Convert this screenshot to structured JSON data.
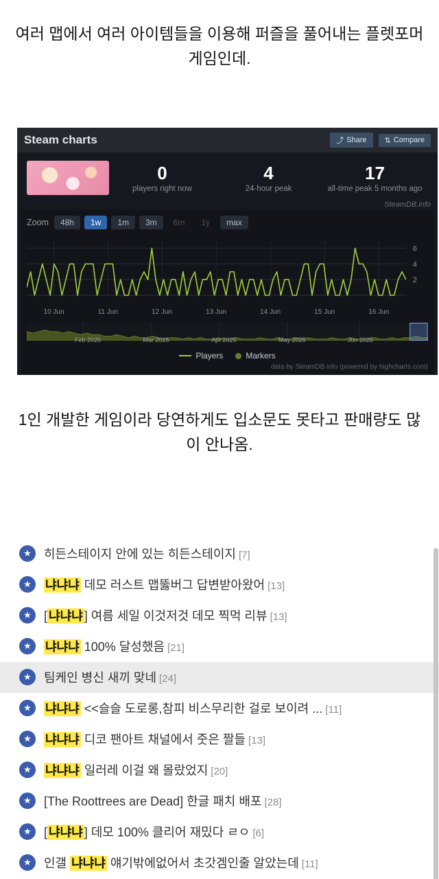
{
  "top_text": "여러 맵에서 여러 아이템들을 이용해 퍼즐을 풀어내는 플렛포머 게임인데.",
  "mid_text": "1인 개발한 게임이라 당연하게도 입소문도 못타고 판매량도 많이 안나옴.",
  "steam": {
    "title": "Steam charts",
    "share_label": "Share",
    "compare_label": "Compare",
    "watermark": "SteamDB.info",
    "zoom_label": "Zoom",
    "zoom_options": [
      {
        "label": "48h",
        "state": "normal"
      },
      {
        "label": "1w",
        "state": "selected"
      },
      {
        "label": "1m",
        "state": "normal"
      },
      {
        "label": "3m",
        "state": "normal"
      },
      {
        "label": "6m",
        "state": "disabled"
      },
      {
        "label": "1y",
        "state": "disabled"
      },
      {
        "label": "max",
        "state": "normal"
      }
    ],
    "stats": [
      {
        "value": "0",
        "label": "players right now"
      },
      {
        "value": "4",
        "label": "24-hour peak"
      },
      {
        "value": "17",
        "label": "all-time peak 5 months ago"
      }
    ],
    "legend": [
      "Players",
      "Markers"
    ],
    "footer": "data by SteamDB.info (powered by highcharts.com)",
    "colors": {
      "line": "#a3ce3c",
      "navigator_fill": "#49531f",
      "selected_zoom": "#2e66ab",
      "highlight": "#ffe94a",
      "star_blue": "#3b5bac"
    }
  },
  "chart_data": {
    "type": "line",
    "series": [
      {
        "name": "Players",
        "values": [
          1,
          3,
          0,
          2,
          4,
          2,
          0,
          4,
          3,
          0,
          2,
          4,
          4,
          0,
          3,
          4,
          4,
          4,
          0,
          2,
          4,
          4,
          4,
          0,
          2,
          0,
          0,
          2,
          0,
          2,
          3,
          2,
          6,
          2,
          0,
          2,
          0,
          2,
          2,
          0,
          3,
          0,
          2,
          3,
          0,
          2,
          2,
          3,
          0,
          2,
          2,
          0,
          3,
          3,
          0,
          2,
          0,
          2,
          2,
          0,
          2,
          0,
          0,
          2,
          3,
          0,
          2,
          2,
          0,
          0,
          2,
          4,
          4,
          0,
          3,
          4,
          4,
          0,
          2,
          0,
          0,
          2,
          0,
          2,
          6,
          4,
          4,
          3,
          0,
          2,
          0,
          0,
          2,
          0,
          0,
          2,
          3,
          2
        ]
      }
    ],
    "x_ticks": [
      "10 Jun",
      "11 Jun",
      "12 Jun",
      "13 Jun",
      "14 Jun",
      "15 Jun",
      "16 Jun"
    ],
    "y_ticks": [
      2,
      4,
      6
    ],
    "ylim": [
      0,
      7
    ],
    "grid": true,
    "legend_position": "bottom",
    "line_color": "#a3ce3c",
    "navigator": {
      "values": [
        6,
        5,
        6,
        7,
        6,
        6,
        5,
        6,
        5,
        4,
        5,
        4,
        4,
        3,
        3,
        4,
        3,
        2,
        3,
        2,
        2,
        3,
        2,
        1,
        2,
        2,
        1,
        2,
        1,
        2,
        1,
        1,
        2,
        1,
        1,
        2,
        1,
        1,
        1,
        2,
        1,
        1,
        2,
        1,
        1,
        2,
        1,
        2,
        1,
        1,
        1,
        2,
        1,
        1,
        2,
        1,
        1,
        1,
        2,
        1,
        1,
        2,
        1,
        2,
        2,
        3,
        2,
        2
      ],
      "labels": [
        "Feb 2025",
        "Mar 2025",
        "Apr 2025",
        "May 2025",
        "Jun 2025"
      ],
      "fill": "#49531f"
    }
  },
  "posts": [
    {
      "pre": "히든스테이지 안에 있는 히든스테이지",
      "count": "[7]"
    },
    {
      "hl": "냐냐냐",
      "post": " 데모 러스트 맵뚫버그 답변받아왔어",
      "count": "[13]"
    },
    {
      "pre": "[",
      "hl": "냐냐냐",
      "post": "] 여름 세일 이것저것 데모 찍먹 리뷰",
      "count": "[13]"
    },
    {
      "hl": "냐냐냐",
      "post": " 100% 달성했음",
      "count": "[21]"
    },
    {
      "pre": "팀케인 병신 새끼 맞네",
      "count": "[24]",
      "shaded": true
    },
    {
      "hl": "냐냐냐",
      "post": " <<슬슬 도로롱,참피 비스무리한 걸로 보이려 ...",
      "count": "[11]"
    },
    {
      "hl": "냐냐냐",
      "post": " 디코 팬아트 채널에서 줏은 짤들",
      "count": "[13]"
    },
    {
      "hl": "냐냐냐",
      "post": " 일러레 이걸 왜 몰랐었지",
      "count": "[20]"
    },
    {
      "pre": "[The Roottrees are Dead] 한글 패치 배포",
      "count": "[28]"
    },
    {
      "pre": "[",
      "hl": "냐냐냐",
      "post": "] 데모 100% 클리어 재밌다 ㄹㅇ",
      "count": "[6]"
    },
    {
      "pre": "인갤 ",
      "hl": "냐냐냐",
      "post": " 얘기밖에없어서 초갓겜인줄 알았는데",
      "count": "[11]"
    }
  ]
}
